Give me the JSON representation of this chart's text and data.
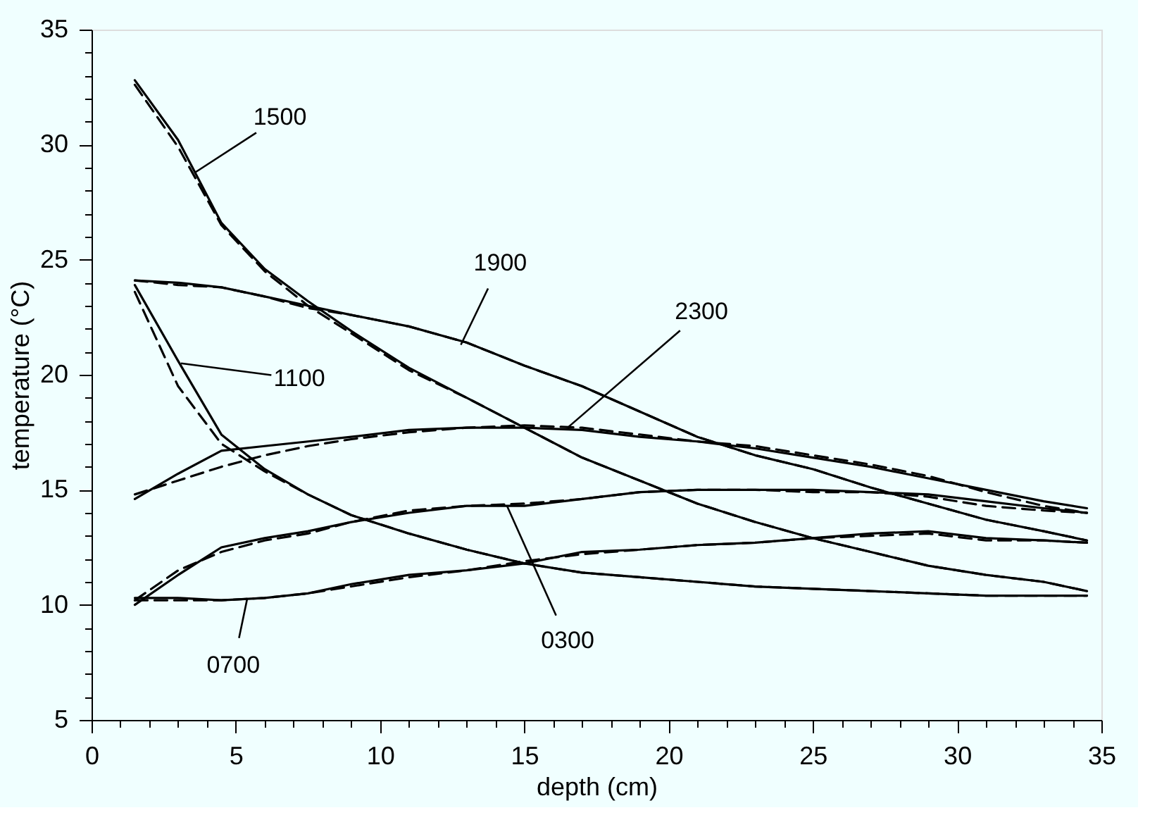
{
  "chart_data": {
    "type": "line",
    "xlabel": "depth (cm)",
    "ylabel": "temperature (°C)",
    "xlim": [
      0,
      35
    ],
    "ylim": [
      5,
      35
    ],
    "xticks": [
      0,
      {
        "value": 1,
        "label": null
      },
      {
        "value": 2,
        "label": null
      },
      {
        "value": 3,
        "label": null
      },
      {
        "value": 4,
        "label": null
      },
      5,
      {
        "value": 6,
        "label": null
      },
      {
        "value": 7,
        "label": null
      },
      {
        "value": 8,
        "label": null
      },
      {
        "value": 9,
        "label": null
      },
      10,
      {
        "value": 11,
        "label": null
      },
      {
        "value": 12,
        "label": null
      },
      {
        "value": 13,
        "label": null
      },
      {
        "value": 14,
        "label": null
      },
      15,
      {
        "value": 16,
        "label": null
      },
      {
        "value": 17,
        "label": null
      },
      {
        "value": 18,
        "label": null
      },
      {
        "value": 19,
        "label": null
      },
      20,
      {
        "value": 21,
        "label": null
      },
      {
        "value": 22,
        "label": null
      },
      {
        "value": 23,
        "label": null
      },
      {
        "value": 24,
        "label": null
      },
      25,
      {
        "value": 26,
        "label": null
      },
      {
        "value": 27,
        "label": null
      },
      {
        "value": 28,
        "label": null
      },
      {
        "value": 29,
        "label": null
      },
      30,
      {
        "value": 31,
        "label": null
      },
      {
        "value": 32,
        "label": null
      },
      {
        "value": 33,
        "label": null
      },
      {
        "value": 34,
        "label": null
      },
      35
    ],
    "yticks": [
      5,
      {
        "value": 6,
        "label": null
      },
      {
        "value": 7,
        "label": null
      },
      {
        "value": 8,
        "label": null
      },
      {
        "value": 9,
        "label": null
      },
      10,
      {
        "value": 11,
        "label": null
      },
      {
        "value": 12,
        "label": null
      },
      {
        "value": 13,
        "label": null
      },
      {
        "value": 14,
        "label": null
      },
      15,
      {
        "value": 16,
        "label": null
      },
      {
        "value": 17,
        "label": null
      },
      {
        "value": 18,
        "label": null
      },
      {
        "value": 19,
        "label": null
      },
      20,
      {
        "value": 21,
        "label": null
      },
      {
        "value": 22,
        "label": null
      },
      {
        "value": 23,
        "label": null
      },
      {
        "value": 24,
        "label": null
      },
      25,
      {
        "value": 26,
        "label": null
      },
      {
        "value": 27,
        "label": null
      },
      {
        "value": 28,
        "label": null
      },
      {
        "value": 29,
        "label": null
      },
      30,
      {
        "value": 31,
        "label": null
      },
      {
        "value": 32,
        "label": null
      },
      {
        "value": 33,
        "label": null
      },
      {
        "value": 34,
        "label": null
      },
      35
    ],
    "x": [
      1.5,
      3,
      4.5,
      6,
      7.5,
      9,
      11,
      13,
      15,
      17,
      19,
      21,
      23,
      25,
      27,
      29,
      31,
      33,
      34.5
    ],
    "grid": false,
    "marker": "none",
    "series": [
      {
        "color": "#000000",
        "line_style": "solid",
        "values": [
          32.8,
          30.2,
          26.6,
          24.6,
          23.2,
          21.9,
          20.3,
          19.0,
          17.7,
          16.4,
          15.4,
          14.4,
          13.6,
          12.9,
          12.3,
          11.7,
          11.3,
          11.0,
          10.6
        ]
      },
      {
        "color": "#000000",
        "line_style": "dashed",
        "values": [
          32.6,
          29.9,
          26.5,
          24.5,
          23.0,
          21.8,
          20.2,
          19.0,
          17.7,
          16.4,
          15.4,
          14.4,
          13.6,
          12.9,
          12.3,
          11.7,
          11.3,
          11.0,
          10.6
        ]
      },
      {
        "color": "#000000",
        "line_style": "solid",
        "values": [
          24.1,
          24.0,
          23.8,
          23.4,
          23.0,
          22.6,
          22.1,
          21.4,
          20.4,
          19.5,
          18.4,
          17.3,
          16.5,
          15.9,
          15.1,
          14.4,
          13.7,
          13.2,
          12.8
        ]
      },
      {
        "color": "#000000",
        "line_style": "dashed",
        "values": [
          24.1,
          23.9,
          23.8,
          23.4,
          22.9,
          22.6,
          22.1,
          21.4,
          20.4,
          19.5,
          18.4,
          17.3,
          16.5,
          15.9,
          15.1,
          14.4,
          13.7,
          13.2,
          12.8
        ]
      },
      {
        "color": "#000000",
        "line_style": "solid",
        "values": [
          14.6,
          15.7,
          16.7,
          16.9,
          17.1,
          17.3,
          17.6,
          17.7,
          17.7,
          17.6,
          17.3,
          17.1,
          16.8,
          16.4,
          16.0,
          15.5,
          15.0,
          14.5,
          14.2
        ]
      },
      {
        "color": "#000000",
        "line_style": "dashed",
        "values": [
          14.8,
          15.4,
          16.0,
          16.5,
          16.9,
          17.2,
          17.5,
          17.7,
          17.8,
          17.7,
          17.4,
          17.1,
          16.9,
          16.5,
          16.1,
          15.6,
          14.9,
          14.3,
          14.0
        ]
      },
      {
        "color": "#000000",
        "line_style": "solid",
        "values": [
          23.9,
          20.6,
          17.4,
          15.9,
          14.8,
          13.9,
          13.1,
          12.4,
          11.8,
          11.4,
          11.2,
          11.0,
          10.8,
          10.7,
          10.6,
          10.5,
          10.4,
          10.4,
          10.4
        ]
      },
      {
        "color": "#000000",
        "line_style": "dashed",
        "values": [
          23.6,
          19.5,
          17.0,
          15.8,
          14.8,
          13.9,
          13.1,
          12.4,
          11.8,
          11.4,
          11.2,
          11.0,
          10.8,
          10.7,
          10.6,
          10.5,
          10.4,
          10.4,
          10.4
        ]
      },
      {
        "color": "#000000",
        "line_style": "solid",
        "values": [
          10.0,
          11.3,
          12.5,
          12.9,
          13.2,
          13.6,
          14.0,
          14.3,
          14.3,
          14.6,
          14.9,
          15.0,
          15.0,
          15.0,
          14.9,
          14.8,
          14.5,
          14.2,
          14.0
        ]
      },
      {
        "color": "#000000",
        "line_style": "dashed",
        "values": [
          10.2,
          11.5,
          12.3,
          12.8,
          13.1,
          13.6,
          14.1,
          14.3,
          14.4,
          14.6,
          14.9,
          15.0,
          15.0,
          14.9,
          14.9,
          14.7,
          14.3,
          14.1,
          14.0
        ]
      },
      {
        "color": "#000000",
        "line_style": "solid",
        "values": [
          10.3,
          10.3,
          10.2,
          10.3,
          10.5,
          10.9,
          11.3,
          11.5,
          11.8,
          12.3,
          12.4,
          12.6,
          12.7,
          12.9,
          13.1,
          13.2,
          12.9,
          12.8,
          12.7
        ]
      },
      {
        "color": "#000000",
        "line_style": "dashed",
        "values": [
          10.2,
          10.2,
          10.2,
          10.3,
          10.5,
          10.8,
          11.2,
          11.5,
          11.9,
          12.2,
          12.4,
          12.6,
          12.7,
          12.9,
          13.0,
          13.1,
          12.8,
          12.8,
          12.7
        ]
      }
    ],
    "annotations": [
      {
        "text": "1500",
        "x": 3.6,
        "y": 28.8
      },
      {
        "text": "1900",
        "x": 12.8,
        "y": 21.3
      },
      {
        "text": "2300",
        "x": 16.5,
        "y": 17.7
      },
      {
        "text": "1100",
        "x": 3.1,
        "y": 20.5
      },
      {
        "text": "0300",
        "x": 14.4,
        "y": 14.3
      },
      {
        "text": "0700",
        "x": 5.4,
        "y": 10.3
      }
    ]
  }
}
